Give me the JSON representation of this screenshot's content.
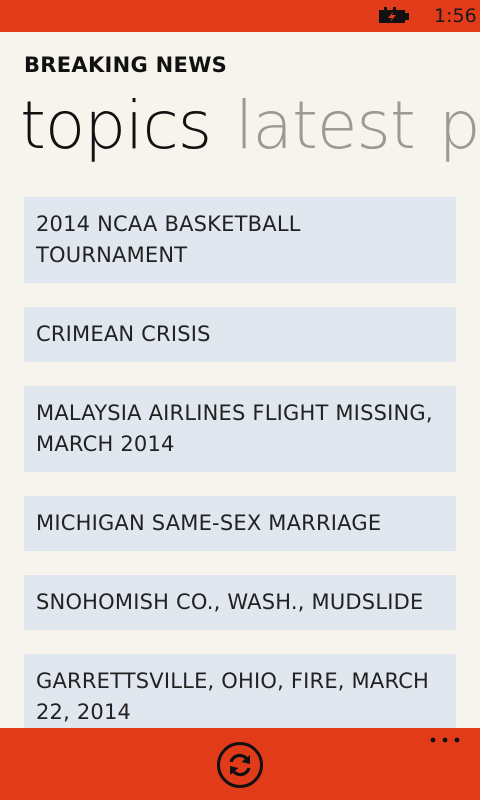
{
  "status_bar": {
    "time": "1:56",
    "battery_icon": "battery-charging-icon"
  },
  "app": {
    "title": "BREAKING NEWS"
  },
  "pivot": {
    "tabs": [
      {
        "label": "topics",
        "active": true
      },
      {
        "label": "latest",
        "active": false
      },
      {
        "label": "popular",
        "active": false
      }
    ]
  },
  "topics": [
    {
      "label": "2014 NCAA BASKETBALL TOURNAMENT"
    },
    {
      "label": "CRIMEAN CRISIS"
    },
    {
      "label": "MALAYSIA AIRLINES FLIGHT MISSING, MARCH 2014"
    },
    {
      "label": "MICHIGAN SAME-SEX MARRIAGE"
    },
    {
      "label": "SNOHOMISH CO., WASH., MUDSLIDE"
    },
    {
      "label": "GARRETTSVILLE, OHIO, FIRE, MARCH 22, 2014"
    }
  ],
  "app_bar": {
    "refresh_icon": "refresh-icon",
    "more_icon": "more-ellipsis-icon"
  },
  "colors": {
    "accent": "#e23b1a",
    "background": "#f6f4ec",
    "tile": "#e1e7ef"
  }
}
